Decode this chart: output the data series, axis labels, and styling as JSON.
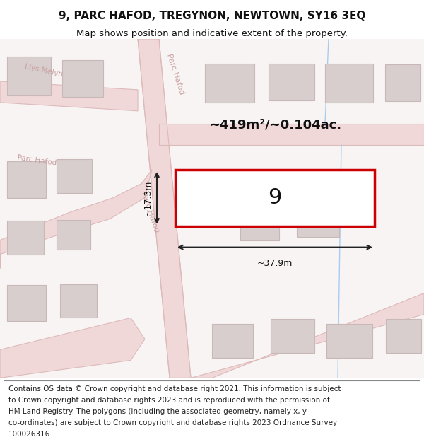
{
  "title_line1": "9, PARC HAFOD, TREGYNON, NEWTOWN, SY16 3EQ",
  "title_line2": "Map shows position and indicative extent of the property.",
  "area_label": "~419m²/~0.104ac.",
  "width_label": "~37.9m",
  "height_label": "~17.3m",
  "plot_number": "9",
  "footer_lines": [
    "Contains OS data © Crown copyright and database right 2021. This information is subject",
    "to Crown copyright and database rights 2023 and is reproduced with the permission of",
    "HM Land Registry. The polygons (including the associated geometry, namely x, y",
    "co-ordinates) are subject to Crown copyright and database rights 2023 Ordnance Survey",
    "100026316."
  ],
  "bg_color": "#ffffff",
  "road_fill": "#f0d8d8",
  "road_edge": "#ddbaba",
  "building_color": "#d8cece",
  "building_edge": "#c8b8b8",
  "plot_border_color": "#cc0000",
  "street_label_color": "#c8a0a0",
  "dim_color": "#222222",
  "title_fontsize": 11,
  "subtitle_fontsize": 9.5,
  "footer_fontsize": 7.5
}
